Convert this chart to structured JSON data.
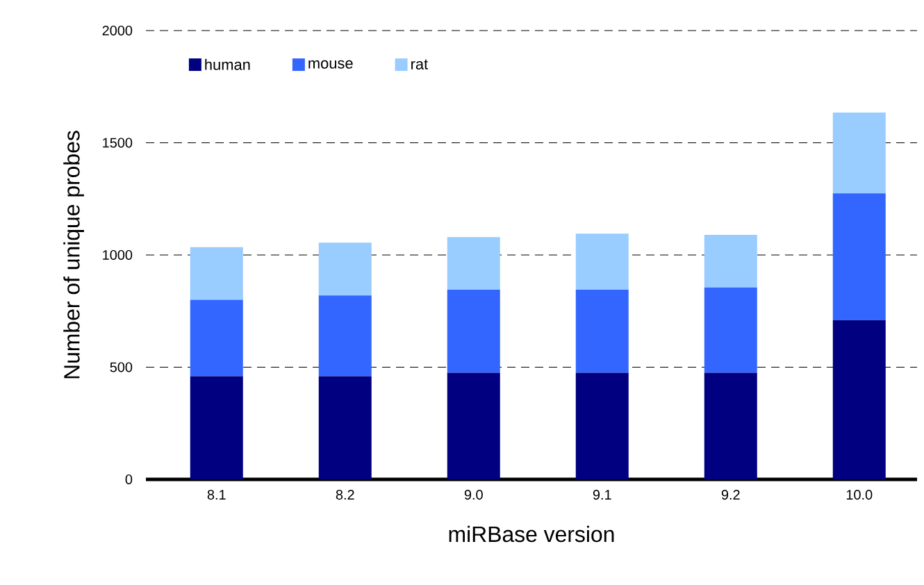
{
  "chart_data": {
    "type": "bar",
    "stacked": true,
    "xlabel": "miRBase version",
    "ylabel": "Number of unique probes",
    "categories": [
      "8.1",
      "8.2",
      "9.0",
      "9.1",
      "9.2",
      "10.0"
    ],
    "series": [
      {
        "name": "human",
        "color": "#000080",
        "values": [
          460,
          460,
          475,
          475,
          475,
          710
        ]
      },
      {
        "name": "mouse",
        "color": "#3366ff",
        "values": [
          340,
          360,
          370,
          370,
          380,
          565
        ]
      },
      {
        "name": "rat",
        "color": "#99ccff",
        "values": [
          235,
          235,
          235,
          250,
          235,
          360
        ]
      }
    ],
    "ylim": [
      0,
      2000
    ],
    "yticks": [
      0,
      500,
      1000,
      1500,
      2000
    ],
    "grid": "y",
    "legend": "top left"
  }
}
